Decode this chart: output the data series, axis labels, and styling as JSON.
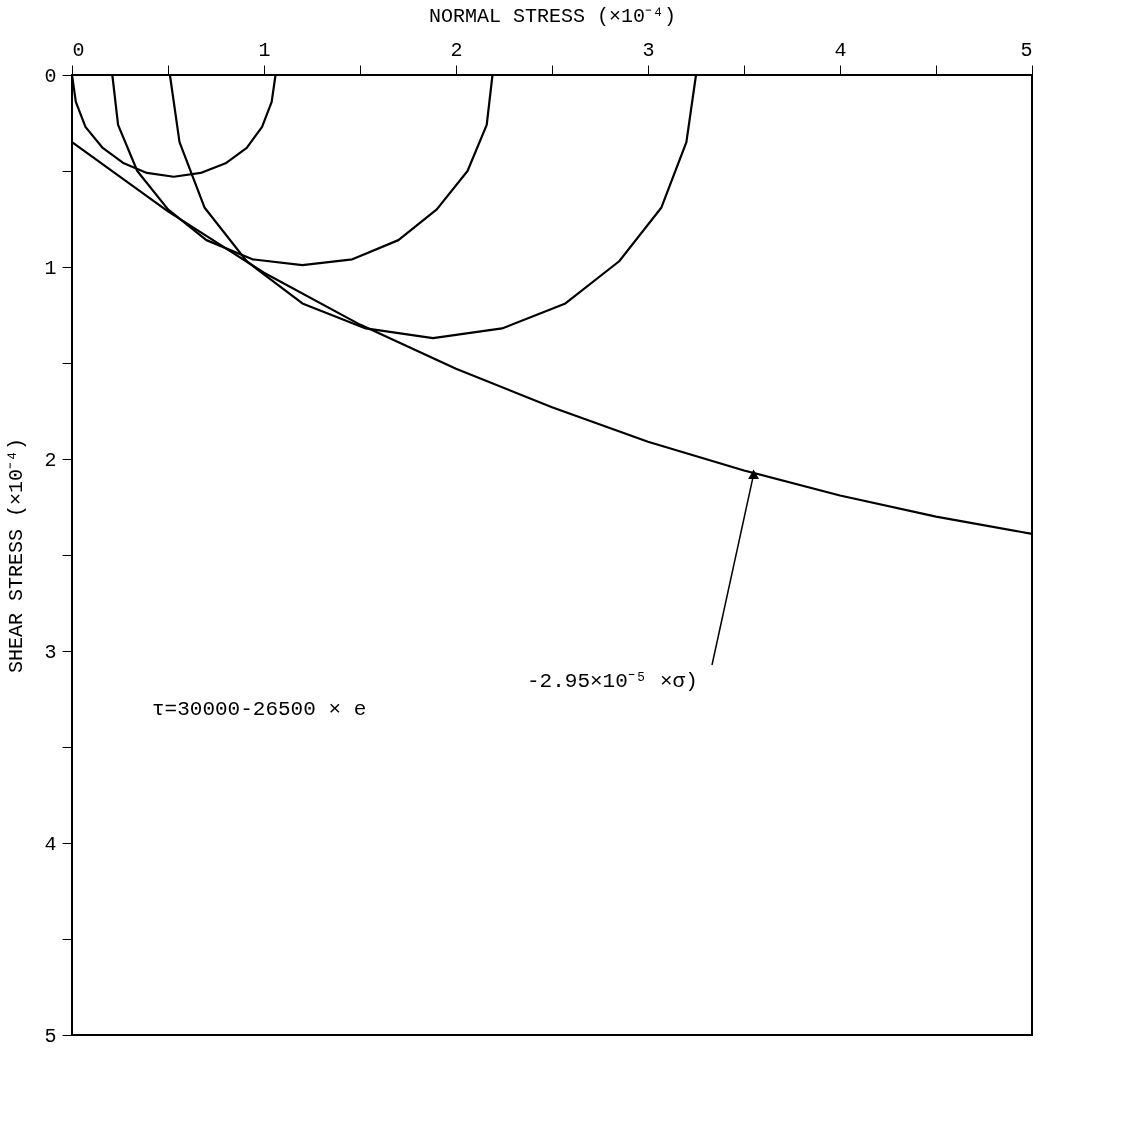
{
  "chart_data": {
    "type": "line",
    "xlabel": "NORMAL STRESS (×10⁻⁴)",
    "ylabel": "SHEAR STRESS (×10⁻⁴)",
    "xlim": [
      0,
      5
    ],
    "ylim": [
      5,
      0
    ],
    "xticks": [
      0,
      {
        "value": 0.5,
        "label": null
      },
      1,
      {
        "value": 1.5,
        "label": null
      },
      2,
      {
        "value": 2.5,
        "label": null
      },
      3,
      {
        "value": 3.5,
        "label": null
      },
      4,
      {
        "value": 4.5,
        "label": null
      },
      5
    ],
    "yticks": [
      0,
      {
        "value": 0.5,
        "label": null
      },
      1,
      {
        "value": 1.5,
        "label": null
      },
      2,
      {
        "value": 2.5,
        "label": null
      },
      3,
      {
        "value": 3.5,
        "label": null
      },
      4,
      {
        "value": 4.5,
        "label": null
      },
      5
    ],
    "grid": false,
    "marker": "none",
    "line_style": "solid",
    "series": [
      {
        "color": "#000000",
        "x": [
          0,
          0.02,
          0.07,
          0.16,
          0.27,
          0.39,
          0.53,
          0.67,
          0.8,
          0.91,
          0.99,
          1.04,
          1.06
        ],
        "values": [
          0,
          0.14,
          0.27,
          0.38,
          0.46,
          0.51,
          0.53,
          0.51,
          0.46,
          0.38,
          0.27,
          0.14,
          0
        ]
      },
      {
        "color": "#000000",
        "x": [
          0.21,
          0.24,
          0.34,
          0.5,
          0.7,
          0.94,
          1.2,
          1.46,
          1.7,
          1.9,
          2.06,
          2.16,
          2.19
        ],
        "values": [
          0,
          0.26,
          0.5,
          0.7,
          0.86,
          0.96,
          0.99,
          0.96,
          0.86,
          0.7,
          0.5,
          0.26,
          0
        ]
      },
      {
        "color": "#000000",
        "x": [
          0.51,
          0.56,
          0.69,
          0.91,
          1.2,
          1.53,
          1.88,
          2.24,
          2.57,
          2.85,
          3.07,
          3.2,
          3.25
        ],
        "values": [
          0,
          0.35,
          0.69,
          0.97,
          1.19,
          1.32,
          1.37,
          1.32,
          1.19,
          0.97,
          0.69,
          0.35,
          0
        ]
      },
      {
        "color": "#000000",
        "x": [
          0,
          0.5,
          1,
          1.5,
          2,
          2.5,
          3,
          3.5,
          4,
          4.5,
          5
        ],
        "values": [
          0.35,
          0.71,
          1.03,
          1.3,
          1.53,
          1.73,
          1.91,
          2.06,
          2.19,
          2.3,
          2.39
        ]
      }
    ],
    "annotations": [
      {
        "text": "-2.95×10⁻⁵ ×σ)",
        "x": 3.55,
        "y": 2.08
      },
      "τ=30000-26500 × e"
    ]
  }
}
